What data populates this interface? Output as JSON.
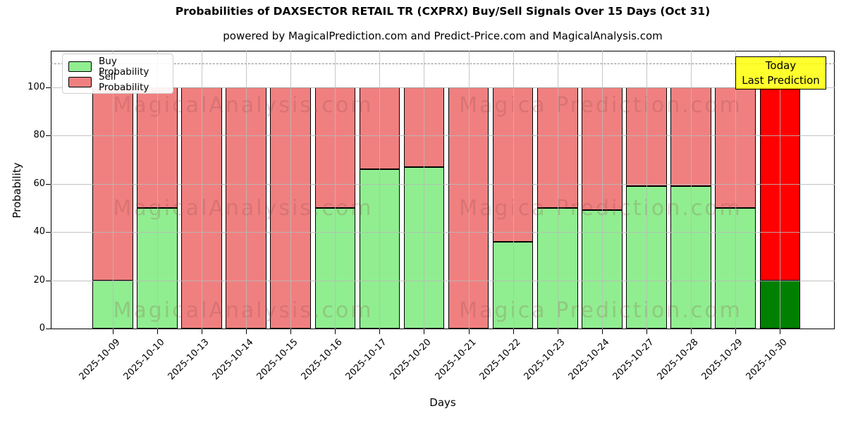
{
  "chart_data": {
    "type": "bar",
    "stacked": true,
    "title": "Probabilities of DAXSECTOR RETAIL TR (CXPRX) Buy/Sell Signals Over 15 Days (Oct 31)",
    "subtitle": "powered by MagicalPrediction.com and Predict-Price.com and MagicalAnalysis.com",
    "xlabel": "Days",
    "ylabel": "Probability",
    "ylim": [
      0,
      115
    ],
    "yticks": [
      0,
      20,
      40,
      60,
      80,
      100
    ],
    "dashed_guideline_y": 110,
    "grid": true,
    "legend_position": "upper left",
    "categories": [
      "2025-10-09",
      "2025-10-10",
      "2025-10-13",
      "2025-10-14",
      "2025-10-15",
      "2025-10-16",
      "2025-10-17",
      "2025-10-20",
      "2025-10-21",
      "2025-10-22",
      "2025-10-23",
      "2025-10-24",
      "2025-10-27",
      "2025-10-28",
      "2025-10-29",
      "2025-10-30"
    ],
    "series": [
      {
        "name": "Buy Probability",
        "color": "#90ee90",
        "values": [
          20,
          50,
          0,
          0,
          0,
          50,
          66,
          67,
          0,
          36,
          50,
          49,
          59,
          59,
          50,
          20
        ]
      },
      {
        "name": "Sell Probability",
        "color": "#f08080",
        "values": [
          80,
          50,
          100,
          100,
          100,
          50,
          34,
          33,
          100,
          64,
          50,
          51,
          41,
          41,
          50,
          80
        ]
      }
    ],
    "today_bar": {
      "category": "2025-10-30",
      "index": 15,
      "buy_color": "#008000",
      "sell_color": "#ff0000"
    }
  },
  "annotation_box": {
    "line1": "Today",
    "line2": "Last Prediction",
    "bg_color": "#ffff00"
  },
  "watermarks": {
    "left": "MagicalAnalysis.com",
    "right": "Magica Prediction.com"
  }
}
